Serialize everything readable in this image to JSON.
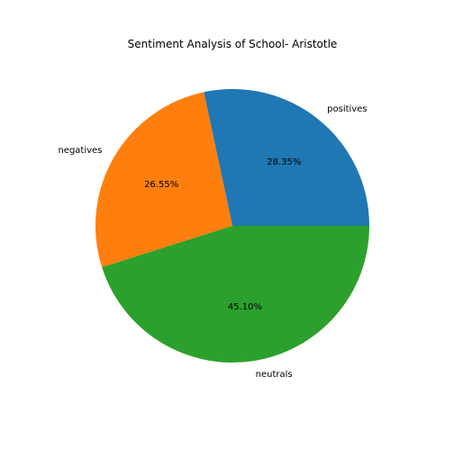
{
  "chart_data": {
    "type": "pie",
    "title": "Sentiment Analysis of School- Aristotle",
    "start_angle_deg": 0,
    "direction": "counterclockwise",
    "slices": [
      {
        "label": "positives",
        "value": 28.35,
        "pct_label": "28.35%",
        "color": "#1f77b4"
      },
      {
        "label": "negatives",
        "value": 26.55,
        "pct_label": "26.55%",
        "color": "#ff7f0e"
      },
      {
        "label": "neutrals",
        "value": 45.1,
        "pct_label": "45.10%",
        "color": "#2ca02c"
      }
    ]
  }
}
